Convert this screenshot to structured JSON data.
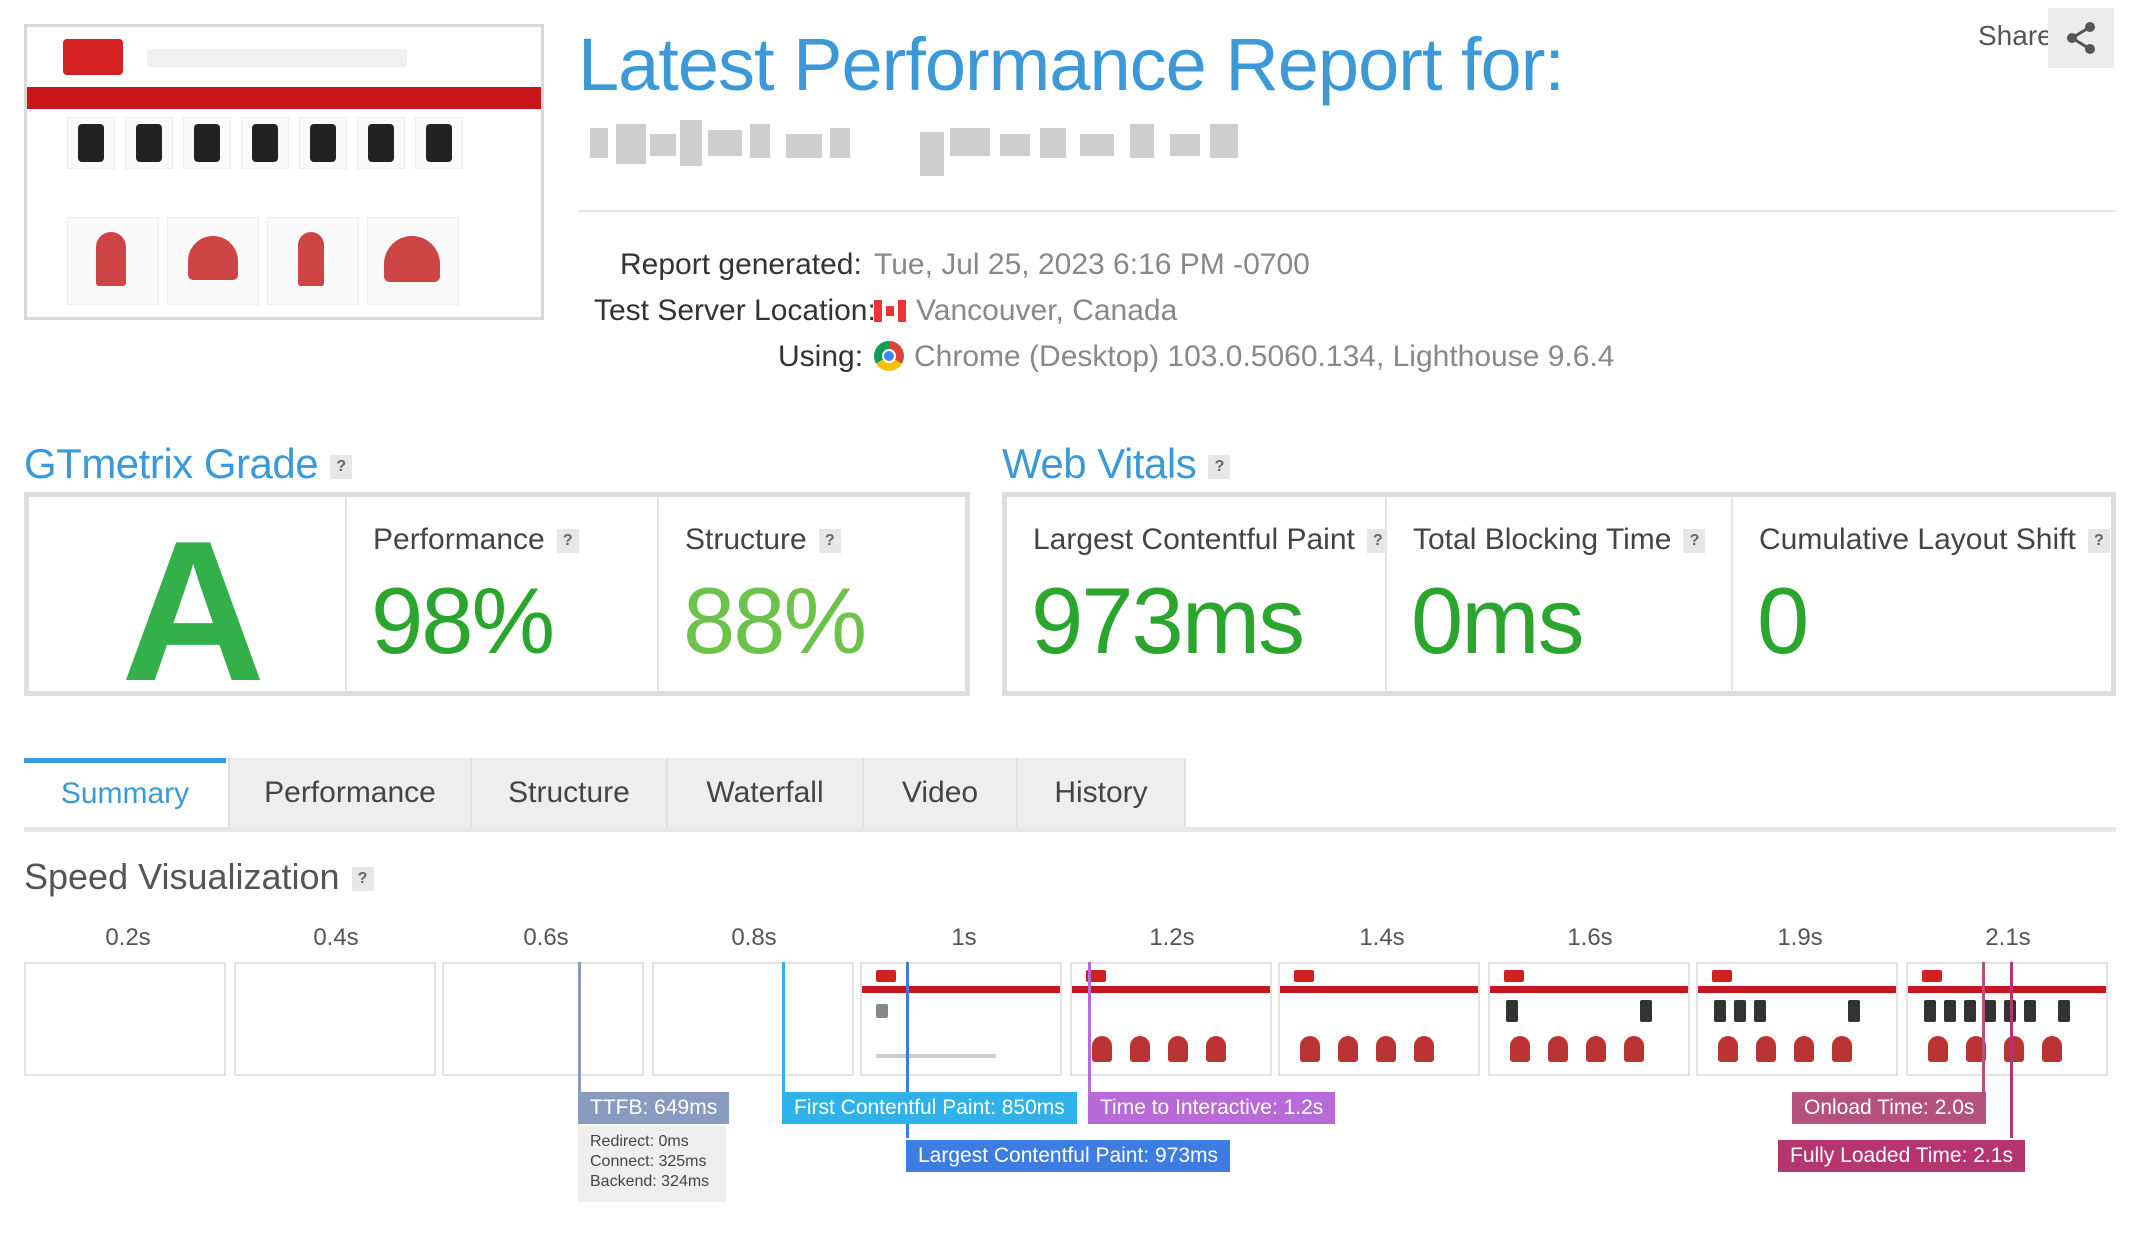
{
  "header": {
    "title": "Latest Performance Report for:",
    "share_label": "Share",
    "report_generated_label": "Report generated:",
    "report_generated_value": "Tue, Jul 25, 2023 6:16 PM -0700",
    "server_location_label": "Test Server Location:",
    "server_location_value": "Vancouver, Canada",
    "using_label": "Using:",
    "using_value": "Chrome (Desktop) 103.0.5060.134, Lighthouse 9.6.4"
  },
  "gtmetrix": {
    "title": "GTmetrix Grade",
    "help": "?",
    "grade": "A",
    "performance_label": "Performance",
    "performance_value": "98%",
    "structure_label": "Structure",
    "structure_value": "88%"
  },
  "web_vitals": {
    "title": "Web Vitals",
    "help": "?",
    "lcp_label": "Largest Contentful Paint",
    "lcp_value": "973ms",
    "tbt_label": "Total Blocking Time",
    "tbt_value": "0ms",
    "cls_label": "Cumulative Layout Shift",
    "cls_value": "0"
  },
  "tabs": [
    {
      "label": "Summary",
      "active": true
    },
    {
      "label": "Performance",
      "active": false
    },
    {
      "label": "Structure",
      "active": false
    },
    {
      "label": "Waterfall",
      "active": false
    },
    {
      "label": "Video",
      "active": false
    },
    {
      "label": "History",
      "active": false
    }
  ],
  "speed": {
    "title": "Speed Visualization",
    "help": "?",
    "ticks": [
      "0.2s",
      "0.4s",
      "0.6s",
      "0.8s",
      "1s",
      "1.2s",
      "1.4s",
      "1.6s",
      "1.9s",
      "2.1s"
    ],
    "markers": {
      "ttfb": "TTFB: 649ms",
      "fcp": "First Contentful Paint: 850ms",
      "tti": "Time to Interactive: 1.2s",
      "lcp": "Largest Contentful Paint: 973ms",
      "onload": "Onload Time: 2.0s",
      "fully": "Fully Loaded Time: 2.1s"
    },
    "ttfb_detail": {
      "redirect": "Redirect: 0ms",
      "connect": "Connect: 325ms",
      "backend": "Backend: 324ms"
    }
  },
  "colors": {
    "accent": "#3b99d8",
    "grade_green": "#33b04a",
    "ttfb": "#8a9bc1",
    "fcp": "#2fb2ea",
    "tti": "#b86ad8",
    "lcp": "#3d7de3",
    "onload": "#b5517e",
    "fully": "#b63470"
  },
  "icons": {
    "share": "share-icon",
    "flag": "canada-flag-icon",
    "browser": "chrome-icon"
  }
}
